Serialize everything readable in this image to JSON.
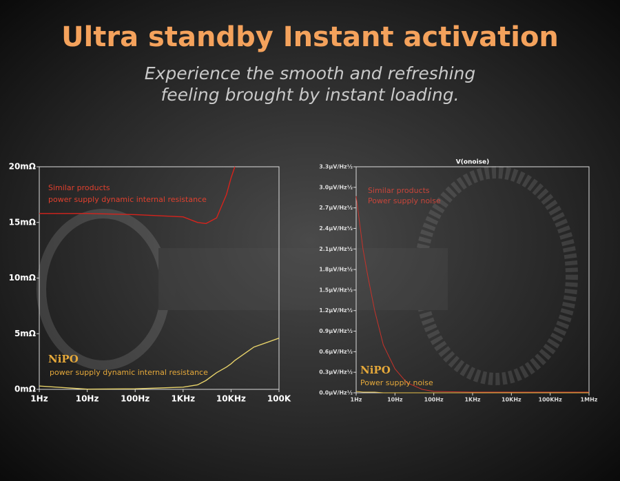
{
  "header": {
    "title": "Ultra standby Instant activation",
    "subtitle": [
      "Experience the smooth and refreshing",
      "feeling brought by instant loading."
    ]
  },
  "chart_data": [
    {
      "type": "line",
      "xscale": "log",
      "x": [
        1,
        10,
        100,
        1000,
        2000,
        3000,
        5000,
        8000,
        10000,
        12000,
        30000,
        100000
      ],
      "series": [
        {
          "color": "#d8231c",
          "values": [
            15.8,
            15.8,
            15.7,
            15.5,
            15.0,
            14.9,
            15.4,
            17.5,
            19,
            20,
            null,
            null
          ]
        },
        {
          "color": "#e8d36a",
          "values": [
            0.3,
            0.02,
            0.05,
            0.2,
            0.4,
            0.8,
            1.5,
            2.0,
            2.3,
            2.6,
            3.8,
            4.6
          ]
        }
      ],
      "xlim": [
        1,
        100000
      ],
      "xticks": [
        {
          "value": 1,
          "label": "1Hz"
        },
        {
          "value": 10,
          "label": "10Hz"
        },
        {
          "value": 100,
          "label": "100Hz"
        },
        {
          "value": 1000,
          "label": "1KHz"
        },
        {
          "value": 10000,
          "label": "10KHz"
        },
        {
          "value": 100000,
          "label": "100K"
        }
      ],
      "ylim": [
        0,
        20
      ],
      "yticks": [
        {
          "value": 0,
          "label": "0mΩ"
        },
        {
          "value": 5,
          "label": "5mΩ"
        },
        {
          "value": 10,
          "label": "10mΩ"
        },
        {
          "value": 15,
          "label": "15mΩ"
        },
        {
          "value": 20,
          "label": "20mΩ"
        }
      ],
      "annotations": [
        "Similar products",
        "power supply dynamic internal resistance",
        "NiPO",
        "power supply dynamic internal resistance"
      ]
    },
    {
      "type": "line",
      "xscale": "log",
      "title": "V(onoise)",
      "x": [
        1,
        1.5,
        2,
        3,
        5,
        10,
        20,
        50,
        100,
        1000,
        1000000
      ],
      "series": [
        {
          "color": "#c8322a",
          "values": [
            2.87,
            2.1,
            1.7,
            1.2,
            0.7,
            0.35,
            0.15,
            0.05,
            0.02,
            0.01,
            0.01
          ]
        },
        {
          "color": "#e8c24a",
          "values": [
            0.02,
            0.01,
            0.01,
            0.01,
            0,
            0,
            0,
            0,
            0,
            0,
            0
          ]
        }
      ],
      "xlim": [
        1,
        1000000
      ],
      "xticks": [
        {
          "value": 1,
          "label": "1Hz"
        },
        {
          "value": 10,
          "label": "10Hz"
        },
        {
          "value": 100,
          "label": "100Hz"
        },
        {
          "value": 1000,
          "label": "1KHz"
        },
        {
          "value": 10000,
          "label": "10KHz"
        },
        {
          "value": 100000,
          "label": "100KHz"
        },
        {
          "value": 1000000,
          "label": "1MHz"
        }
      ],
      "ylim": [
        0,
        3.3
      ],
      "yticks": [
        {
          "value": 0,
          "label": "0.0μV/Hz½"
        },
        {
          "value": 0.3,
          "label": "0.3μV/Hz½"
        },
        {
          "value": 0.6,
          "label": "0.6μV/Hz½"
        },
        {
          "value": 0.9,
          "label": "0.9μV/Hz½"
        },
        {
          "value": 1.2,
          "label": "1.2μV/Hz½"
        },
        {
          "value": 1.5,
          "label": "1.5μV/Hz½"
        },
        {
          "value": 1.8,
          "label": "1.8μV/Hz½"
        },
        {
          "value": 2.1,
          "label": "2.1μV/Hz½"
        },
        {
          "value": 2.4,
          "label": "2.4μV/Hz½"
        },
        {
          "value": 2.7,
          "label": "2.7μV/Hz½"
        },
        {
          "value": 3.0,
          "label": "3.0μV/Hz½"
        },
        {
          "value": 3.3,
          "label": "3.3μV/Hz½"
        }
      ],
      "annotations": [
        "Similar products",
        "Power supply noise",
        "NiPO",
        "Power supply noise"
      ]
    }
  ]
}
